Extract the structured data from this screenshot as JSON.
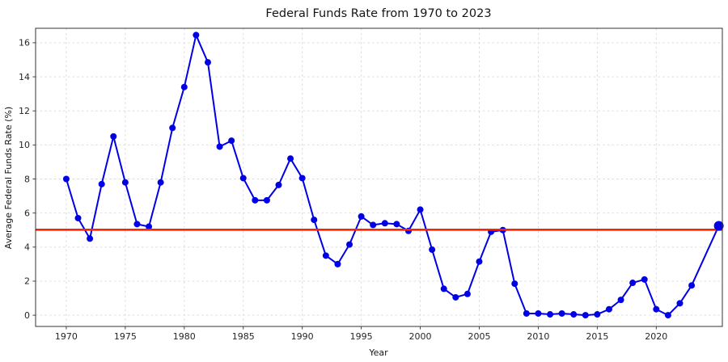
{
  "figure": {
    "background": "#ffffff"
  },
  "chart_data": {
    "type": "line",
    "title": "Federal Funds Rate from 1970 to 2023",
    "xlabel": "Year",
    "ylabel": "Average Federal Funds Rate (%)",
    "x": [
      1970,
      1971,
      1972,
      1973,
      1974,
      1975,
      1976,
      1977,
      1978,
      1979,
      1980,
      1981,
      1982,
      1983,
      1984,
      1985,
      1986,
      1987,
      1988,
      1989,
      1990,
      1991,
      1992,
      1993,
      1994,
      1995,
      1996,
      1997,
      1998,
      1999,
      2000,
      2001,
      2002,
      2003,
      2004,
      2005,
      2006,
      2007,
      2008,
      2009,
      2010,
      2011,
      2012,
      2013,
      2014,
      2015,
      2016,
      2017,
      2018,
      2019,
      2020,
      2021,
      2022,
      2023,
      2025.3
    ],
    "values": [
      8.0,
      5.7,
      4.5,
      7.7,
      10.5,
      7.8,
      5.35,
      5.2,
      7.8,
      11.0,
      13.4,
      16.45,
      14.85,
      9.9,
      10.25,
      8.05,
      6.75,
      6.75,
      7.65,
      9.2,
      8.05,
      5.6,
      3.5,
      3.0,
      4.15,
      5.8,
      5.3,
      5.4,
      5.35,
      4.95,
      6.2,
      3.85,
      1.55,
      1.05,
      1.25,
      3.15,
      4.9,
      5.0,
      1.85,
      0.1,
      0.1,
      0.05,
      0.1,
      0.05,
      0.0,
      0.05,
      0.35,
      0.9,
      1.9,
      2.1,
      0.35,
      0.0,
      0.7,
      1.75,
      5.25
    ],
    "series_color": "#0000e6",
    "marker": "circle",
    "marker_size": 4,
    "final_marker_size": 6,
    "line_width": 2,
    "reference_line": {
      "y": 5.02,
      "color": "#ff2200",
      "width": 2.6
    },
    "xticks": [
      1970,
      1975,
      1980,
      1985,
      1990,
      1995,
      2000,
      2005,
      2010,
      2015,
      2020
    ],
    "yticks": [
      0,
      2,
      4,
      6,
      8,
      10,
      12,
      14,
      16
    ],
    "xlim": [
      1967.4,
      2025.6
    ],
    "ylim": [
      -0.66,
      16.85
    ],
    "grid": true,
    "grid_color": "#d8d8d8",
    "spine_color": "#333333",
    "legend": "none"
  }
}
